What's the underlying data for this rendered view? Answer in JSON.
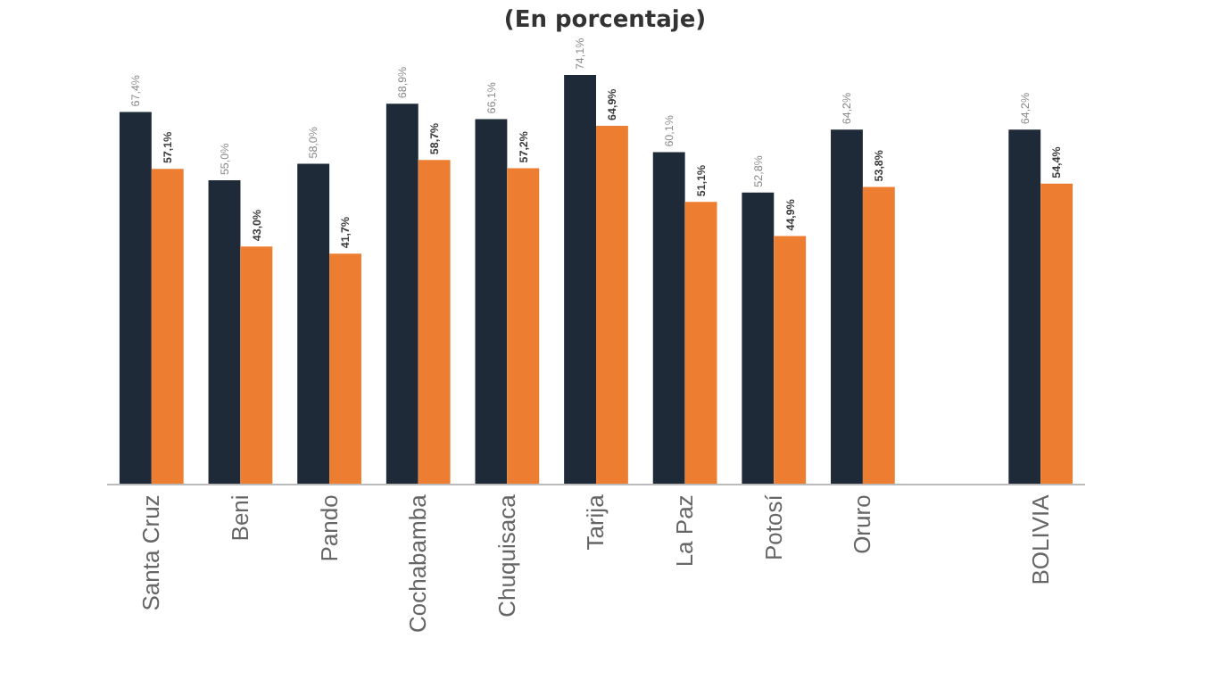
{
  "chart_data": {
    "type": "bar",
    "title": "(En porcentaje)",
    "categories": [
      "Santa Cruz",
      "Beni",
      "Pando",
      "Cochabamba",
      "Chuquisaca",
      "Tarija",
      "La Paz",
      "Potosí",
      "Oruro",
      null,
      "BOLIVIA"
    ],
    "series": [
      {
        "color": "#1f2a38",
        "values": [
          67.4,
          55.0,
          58.0,
          68.9,
          66.1,
          74.1,
          60.1,
          52.8,
          64.2,
          null,
          64.2
        ],
        "value_labels": [
          "67,4%",
          "55,0%",
          "58,0%",
          "68,9%",
          "66,1%",
          "74,1%",
          "60,1%",
          "52,8%",
          "64,2%",
          null,
          "64,2%"
        ]
      },
      {
        "color": "#ed7d31",
        "values": [
          57.1,
          43.0,
          41.7,
          58.7,
          57.2,
          64.9,
          51.1,
          44.9,
          53.8,
          null,
          54.4
        ],
        "value_labels": [
          "57,1%",
          "43,0%",
          "41,7%",
          "58,7%",
          "57,2%",
          "64,9%",
          "51,1%",
          "44,9%",
          "53,8%",
          null,
          "54,4%"
        ]
      }
    ]
  }
}
